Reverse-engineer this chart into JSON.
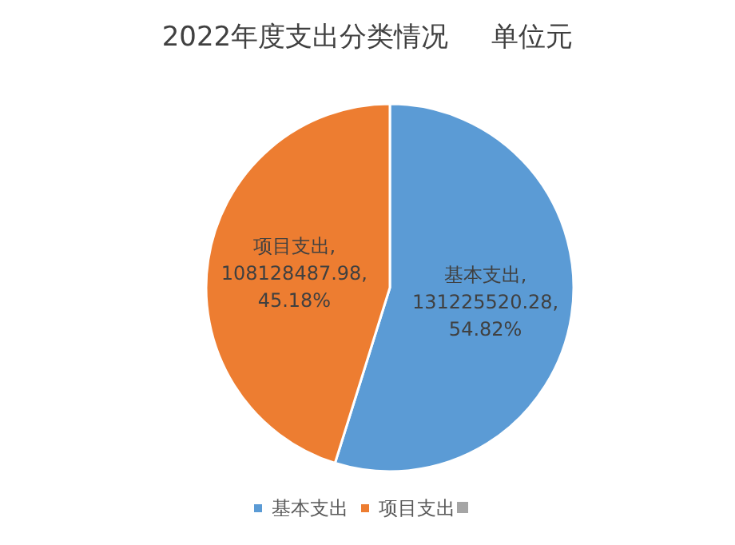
{
  "chart_data": {
    "type": "pie",
    "title": "2022年度支出分类情况     单位元",
    "categories": [
      "基本支出",
      "项目支出"
    ],
    "values": [
      131225520.28,
      108128487.98
    ],
    "colors": [
      "#5b9bd5",
      "#ed7d31"
    ],
    "value_labels": [
      "基本支出,\n131225520.28,\n54.82%",
      "项目支出,\n108128487.98,\n45.18%"
    ],
    "legend": "bottom"
  }
}
